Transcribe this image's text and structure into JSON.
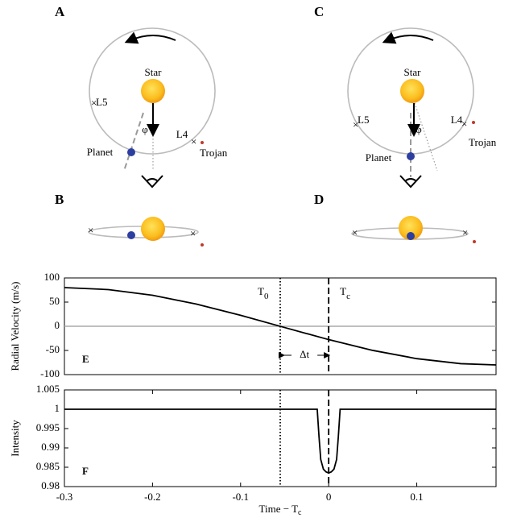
{
  "diagram": {
    "panels": [
      {
        "label": "A",
        "star": "Star",
        "planet": "Planet",
        "trojan": "Trojan",
        "l4": "L4",
        "l5": "L5",
        "phi": "φ"
      },
      {
        "label": "B"
      },
      {
        "label": "C",
        "star": "Star",
        "planet": "Planet",
        "trojan": "Trojan",
        "l4": "L4",
        "l5": "L5",
        "phi": "φ"
      },
      {
        "label": "D"
      }
    ]
  },
  "chart_data": [
    {
      "type": "line",
      "panel_label": "E",
      "ylabel": "Radial Velocity (m/s)",
      "x": [
        -0.3,
        -0.25,
        -0.2,
        -0.15,
        -0.1,
        -0.05,
        0,
        0.05,
        0.1,
        0.15,
        0.19
      ],
      "values": [
        80,
        75.9,
        64.1,
        45.8,
        22.7,
        -2.6,
        -27.6,
        -49.9,
        -67,
        -77.4,
        -80
      ],
      "color": "#000000",
      "xlim": [
        -0.3,
        0.19
      ],
      "ylim": [
        -100,
        100
      ],
      "yticks": [
        -100,
        -50,
        0,
        50,
        100
      ],
      "zero_line": true,
      "vlines": [
        {
          "x": -0.055,
          "label": "T",
          "subscript": "0",
          "style": "dotted"
        },
        {
          "x": 0,
          "label": "T",
          "subscript": "c",
          "style": "dashed"
        }
      ],
      "annotation": {
        "text": "Δt",
        "y": -60
      }
    },
    {
      "type": "line",
      "panel_label": "F",
      "ylabel": "Intensity",
      "xlabel": "Time − T",
      "xlabel_subscript": "c",
      "x": [
        -0.3,
        -0.013,
        -0.011,
        -0.009,
        -0.006,
        -0.003,
        0,
        0.003,
        0.006,
        0.009,
        0.011,
        0.013,
        0.19
      ],
      "values": [
        1,
        1,
        0.993,
        0.987,
        0.9845,
        0.9838,
        0.9835,
        0.9838,
        0.9845,
        0.987,
        0.993,
        1,
        1
      ],
      "color": "#000000",
      "xlim": [
        -0.3,
        0.19
      ],
      "ylim": [
        0.98,
        1.005
      ],
      "xticks": [
        -0.3,
        -0.2,
        -0.1,
        0,
        0.1
      ],
      "yticks": [
        0.98,
        0.985,
        0.99,
        0.995,
        1,
        1.005
      ],
      "vlines": [
        {
          "x": -0.055,
          "style": "dotted"
        },
        {
          "x": 0,
          "style": "dashed"
        }
      ]
    }
  ]
}
